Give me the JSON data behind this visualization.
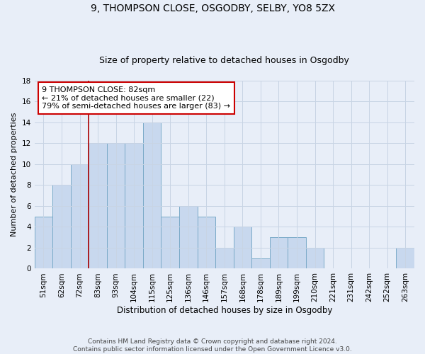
{
  "title1": "9, THOMPSON CLOSE, OSGODBY, SELBY, YO8 5ZX",
  "title2": "Size of property relative to detached houses in Osgodby",
  "xlabel": "Distribution of detached houses by size in Osgodby",
  "ylabel": "Number of detached properties",
  "categories": [
    "51sqm",
    "62sqm",
    "72sqm",
    "83sqm",
    "93sqm",
    "104sqm",
    "115sqm",
    "125sqm",
    "136sqm",
    "146sqm",
    "157sqm",
    "168sqm",
    "178sqm",
    "189sqm",
    "199sqm",
    "210sqm",
    "221sqm",
    "231sqm",
    "242sqm",
    "252sqm",
    "263sqm"
  ],
  "values": [
    5,
    8,
    10,
    12,
    12,
    12,
    14,
    5,
    6,
    5,
    2,
    4,
    1,
    3,
    3,
    2,
    0,
    0,
    0,
    0,
    2
  ],
  "bar_color": "#c8d8ee",
  "bar_edge_color": "#7aaac8",
  "bar_edge_width": 0.7,
  "red_line_index": 3,
  "annotation_text": "9 THOMPSON CLOSE: 82sqm\n← 21% of detached houses are smaller (22)\n79% of semi-detached houses are larger (83) →",
  "annotation_box_color": "#ffffff",
  "annotation_box_edge_color": "#cc0000",
  "ylim": [
    0,
    18
  ],
  "yticks": [
    0,
    2,
    4,
    6,
    8,
    10,
    12,
    14,
    16,
    18
  ],
  "grid_color": "#c8d4e4",
  "background_color": "#e8eef8",
  "footnote": "Contains HM Land Registry data © Crown copyright and database right 2024.\nContains public sector information licensed under the Open Government Licence v3.0.",
  "title1_fontsize": 10,
  "title2_fontsize": 9,
  "xlabel_fontsize": 8.5,
  "ylabel_fontsize": 8,
  "tick_fontsize": 7.5,
  "annotation_fontsize": 8,
  "footnote_fontsize": 6.5
}
